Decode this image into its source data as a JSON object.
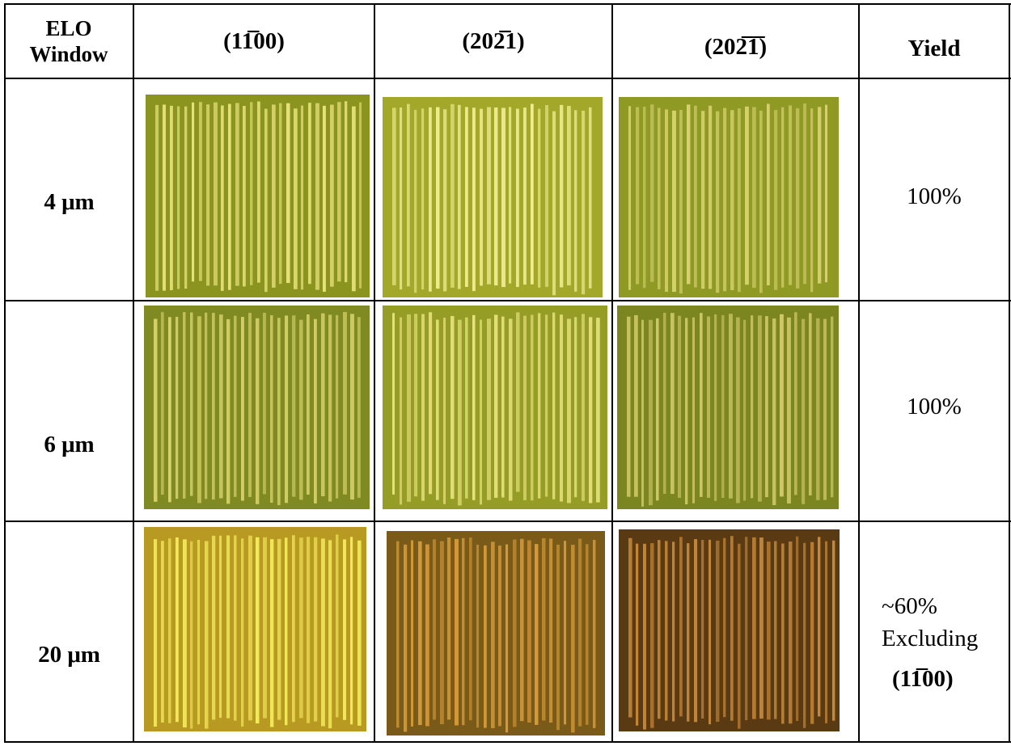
{
  "table": {
    "header": [
      "ELO Window",
      "(11̅00)",
      "(202̅1)",
      "(202̅1̅)",
      "Yield"
    ],
    "rows": [
      {
        "window": "4 μm",
        "yield": [
          "100%"
        ]
      },
      {
        "window": "6 μm",
        "yield": [
          "100%"
        ]
      },
      {
        "window": "20 μm",
        "yield": [
          "~60%",
          "Excluding",
          "(11̅00)"
        ]
      }
    ]
  }
}
